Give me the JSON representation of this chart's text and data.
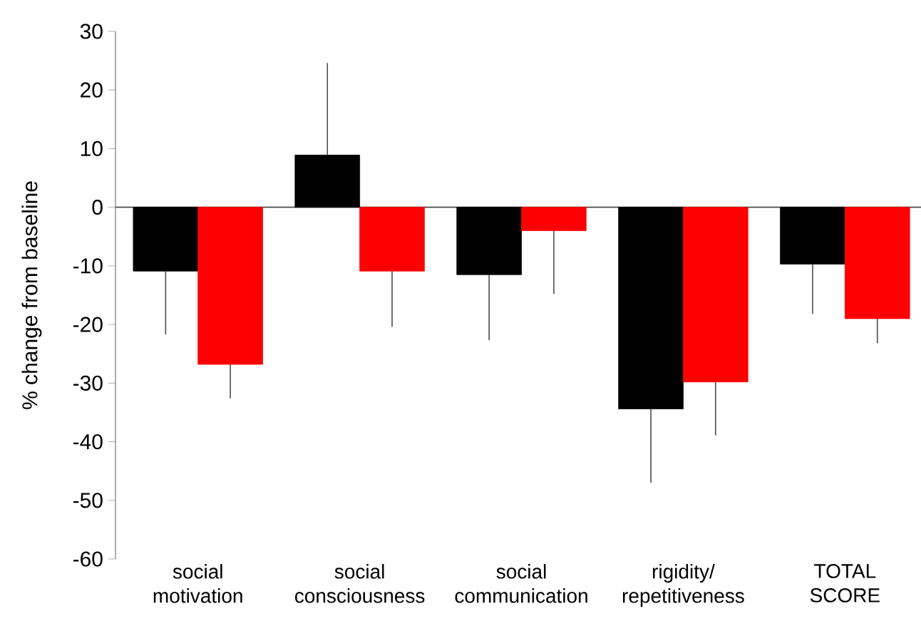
{
  "chart_data": {
    "type": "bar",
    "ylabel": "% change from baseline",
    "categories": [
      "social motivation",
      "social consciousness",
      "social communication",
      "rigidity/ repetitiveness",
      "TOTAL SCORE"
    ],
    "series": [
      {
        "color": "#000000",
        "values": [
          -10.9,
          8.9,
          -11.5,
          -34.4,
          -9.7
        ],
        "errors": [
          [
            -21.7,
            -10.9
          ],
          [
            8.9,
            24.6
          ],
          [
            -22.7,
            -11.5
          ],
          [
            -47.0,
            -34.4
          ],
          [
            -18.2,
            -9.7
          ]
        ]
      },
      {
        "color": "#ff0000",
        "values": [
          -26.8,
          -10.9,
          -4.0,
          -29.8,
          -19.0
        ],
        "errors": [
          [
            -32.6,
            -26.8
          ],
          [
            -20.4,
            -10.9
          ],
          [
            -14.8,
            -4.0
          ],
          [
            -38.9,
            -29.8
          ],
          [
            -23.2,
            -19.0
          ]
        ]
      }
    ],
    "ylim": [
      -60,
      30
    ],
    "yticks": [
      -60,
      -50,
      -40,
      -30,
      -20,
      -10,
      0,
      10,
      20,
      30
    ]
  }
}
